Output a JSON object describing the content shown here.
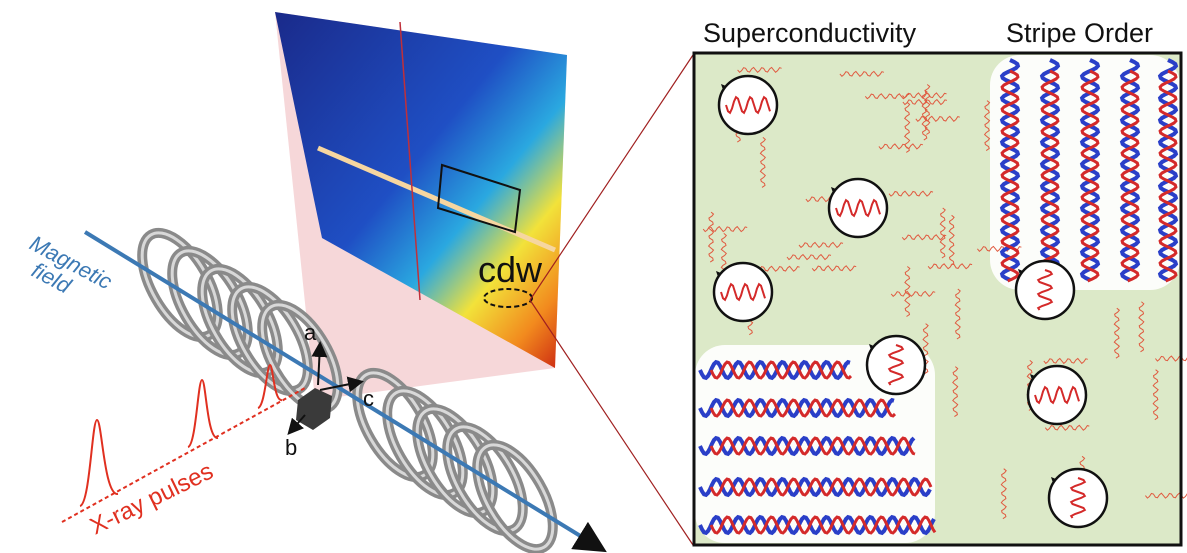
{
  "labels": {
    "superconductivity": "Superconductivity",
    "stripe_order": "Stripe Order",
    "magnetic_field": [
      "Magnetic",
      "field"
    ],
    "xray_pulses": "X-ray pulses",
    "cdw": "cdw",
    "axes": {
      "a": "a",
      "b": "b",
      "c": "c"
    }
  }
}
